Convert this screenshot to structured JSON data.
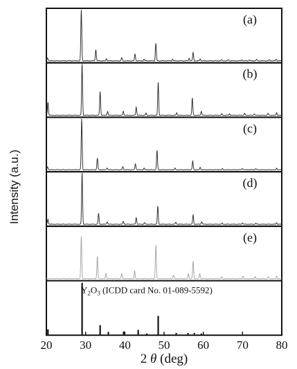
{
  "chart_data": {
    "type": "line",
    "subtype": "stacked-xrd-patterns",
    "xlabel_prefix": "2",
    "xlabel_symbol": "θ",
    "xlabel_unit": "(deg)",
    "ylabel": "Intensity (a.u.)",
    "xlim": [
      20,
      80
    ],
    "x_ticks": [
      20,
      30,
      40,
      50,
      60,
      70,
      80
    ],
    "grid": false,
    "panels": [
      {
        "label": "(a)",
        "color": "#333333",
        "peaks": [
          [
            20.3,
            0.06
          ],
          [
            28.9,
            1.0
          ],
          [
            32.6,
            0.22
          ],
          [
            35.3,
            0.04
          ],
          [
            39.2,
            0.06
          ],
          [
            42.6,
            0.13
          ],
          [
            44.9,
            0.03
          ],
          [
            47.9,
            0.34
          ],
          [
            52.2,
            0.03
          ],
          [
            56.4,
            0.05
          ],
          [
            57.4,
            0.16
          ],
          [
            59.2,
            0.04
          ],
          [
            64.6,
            0.02
          ],
          [
            66.4,
            0.02
          ],
          [
            69.8,
            0.02
          ],
          [
            71.7,
            0.02
          ],
          [
            73.6,
            0.03
          ],
          [
            76.8,
            0.02
          ],
          [
            78.6,
            0.03
          ]
        ]
      },
      {
        "label": "(b)",
        "color": "#333333",
        "peaks": [
          [
            20.4,
            0.26
          ],
          [
            29.1,
            1.0
          ],
          [
            33.7,
            0.47
          ],
          [
            35.6,
            0.08
          ],
          [
            39.6,
            0.08
          ],
          [
            42.9,
            0.16
          ],
          [
            45.4,
            0.04
          ],
          [
            48.5,
            0.64
          ],
          [
            53.2,
            0.05
          ],
          [
            57.2,
            0.34
          ],
          [
            59.5,
            0.08
          ],
          [
            64.7,
            0.03
          ],
          [
            66.7,
            0.03
          ],
          [
            70.5,
            0.04
          ],
          [
            73.0,
            0.03
          ],
          [
            76.5,
            0.04
          ],
          [
            78.7,
            0.05
          ]
        ]
      },
      {
        "label": "(c)",
        "color": "#333333",
        "peaks": [
          [
            20.3,
            0.06
          ],
          [
            29.0,
            1.0
          ],
          [
            33.0,
            0.23
          ],
          [
            35.5,
            0.04
          ],
          [
            39.5,
            0.06
          ],
          [
            42.7,
            0.12
          ],
          [
            44.9,
            0.03
          ],
          [
            48.2,
            0.38
          ],
          [
            52.8,
            0.03
          ],
          [
            57.3,
            0.17
          ],
          [
            59.2,
            0.05
          ],
          [
            64.9,
            0.02
          ],
          [
            69.9,
            0.03
          ],
          [
            73.4,
            0.02
          ],
          [
            78.7,
            0.03
          ]
        ]
      },
      {
        "label": "(d)",
        "color": "#333333",
        "peaks": [
          [
            20.4,
            0.1
          ],
          [
            29.1,
            1.0
          ],
          [
            33.3,
            0.21
          ],
          [
            35.5,
            0.05
          ],
          [
            39.6,
            0.06
          ],
          [
            42.9,
            0.13
          ],
          [
            45.0,
            0.03
          ],
          [
            48.4,
            0.35
          ],
          [
            53.0,
            0.04
          ],
          [
            57.4,
            0.18
          ],
          [
            59.6,
            0.05
          ],
          [
            64.8,
            0.02
          ],
          [
            70.0,
            0.03
          ],
          [
            73.4,
            0.02
          ],
          [
            78.7,
            0.03
          ]
        ]
      },
      {
        "label": "(e)",
        "color": "#a8a8a8",
        "peaks": [
          [
            28.9,
            0.83
          ],
          [
            33.0,
            0.44
          ],
          [
            35.2,
            0.1
          ],
          [
            39.2,
            0.1
          ],
          [
            42.5,
            0.15
          ],
          [
            47.9,
            0.66
          ],
          [
            52.4,
            0.07
          ],
          [
            56.2,
            0.1
          ],
          [
            57.4,
            0.34
          ],
          [
            59.1,
            0.1
          ],
          [
            64.6,
            0.04
          ],
          [
            70.1,
            0.05
          ],
          [
            73.2,
            0.04
          ],
          [
            76.6,
            0.04
          ],
          [
            78.7,
            0.05
          ]
        ]
      },
      {
        "label": "",
        "reference_text": "Y₂O₃ (ICDD card No. 01-089-5592)",
        "reference_main": "Y",
        "reference_sub": "2",
        "reference_rest": "O",
        "reference_sub2": "3",
        "reference_tail": " (ICDD card No. 01-089-5592)",
        "color": "#111111",
        "sticks": [
          [
            20.4,
            0.1
          ],
          [
            29.1,
            1.0
          ],
          [
            33.7,
            0.18
          ],
          [
            35.8,
            0.05
          ],
          [
            39.7,
            0.06
          ],
          [
            43.4,
            0.09
          ],
          [
            45.6,
            0.02
          ],
          [
            48.5,
            0.36
          ],
          [
            53.1,
            0.03
          ],
          [
            56.1,
            0.03
          ],
          [
            57.7,
            0.03
          ],
          [
            59.5,
            0.02
          ]
        ]
      }
    ]
  }
}
